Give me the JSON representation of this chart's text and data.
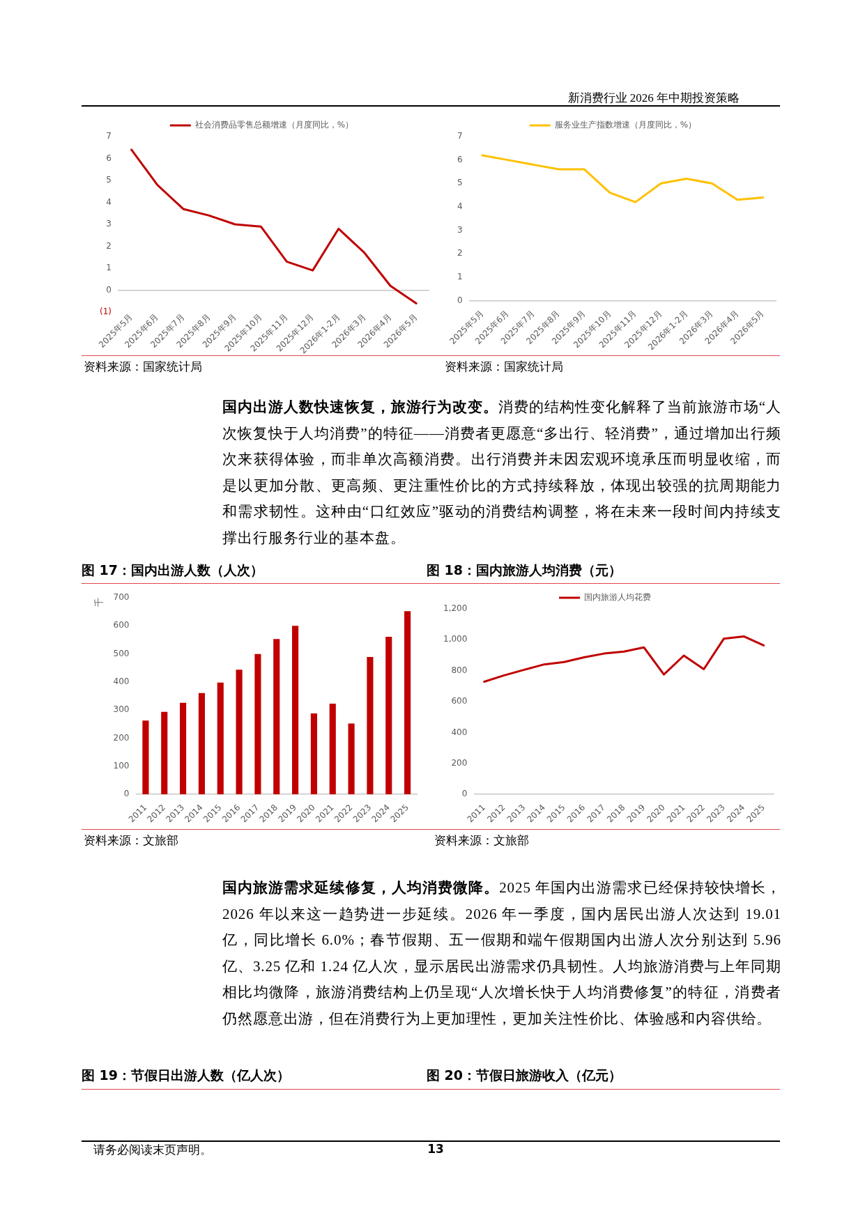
{
  "chart_data": [
    {
      "type": "other",
      "annotations": [
        "新消费行业 2026 年中期投资策略"
      ]
    },
    {
      "type": "line",
      "categories": [
        "2025年5月",
        "2025年6月",
        "2025年7月",
        "2025年8月",
        "2025年9月",
        "2025年10月",
        "2025年11月",
        "2025年12月",
        "2026年1-2月",
        "2026年3月",
        "2026年4月",
        "2026年5月"
      ],
      "series": [
        {
          "name": "社会消费品零售总额增速（月度同比，%）",
          "color": "#c00000",
          "values": [
            6.4,
            4.8,
            3.7,
            3.4,
            3.0,
            2.9,
            1.3,
            0.9,
            2.8,
            1.7,
            0.2,
            -0.6
          ]
        }
      ],
      "ylim": [
        -1,
        7
      ],
      "yticks": [
        {
          "value": -1,
          "label": "(1)"
        },
        0,
        1,
        2,
        3,
        4,
        5,
        6,
        7
      ],
      "legend": "top",
      "marker": "none",
      "annotations": [
        "资料来源：国家统计局"
      ]
    },
    {
      "type": "line",
      "categories": [
        "2025年5月",
        "2025年6月",
        "2025年7月",
        "2025年8月",
        "2025年9月",
        "2025年10月",
        "2025年11月",
        "2025年12月",
        "2026年1-2月",
        "2026年3月",
        "2026年4月",
        "2026年5月"
      ],
      "series": [
        {
          "name": "服务业生产指数增速（月度同比，%）",
          "color": "#ffc000",
          "values": [
            6.2,
            6.0,
            5.8,
            5.6,
            5.6,
            4.6,
            4.2,
            5.0,
            5.2,
            5.0,
            4.3,
            4.4
          ]
        }
      ],
      "ylim": [
        0,
        7
      ],
      "yticks": [
        0,
        1,
        2,
        3,
        4,
        5,
        6,
        7
      ],
      "legend": "top",
      "marker": "none",
      "annotations": [
        "资料来源：国家统计局"
      ]
    },
    {
      "type": "other",
      "title": "国内出游人数快速恢复，旅游行为改变。",
      "annotations": [
        "消费的结构性变化解释了当前旅游市场“人次恢复快于人均消费”的特征——消费者更愿意“多出行、轻消费”，通过增加出行频次来获得体验，而非单次高额消费。出行消费并未因宏观环境承压而明显收缩，而是以更加分散、更高频、更注重性价比的方式持续释放，体现出较强的抗周期能力和需求韧性。这种由“口红效应”驱动的消费结构调整，将在未来一段时间内持续支撑出行服务行业的基本盘。"
      ]
    },
    {
      "type": "bar",
      "title": "图 17：国内出游人数（人次）",
      "ylabel": "千",
      "categories": [
        "2011",
        "2012",
        "2013",
        "2014",
        "2015",
        "2016",
        "2017",
        "2018",
        "2019",
        "2020",
        "2021",
        "2022",
        "2023",
        "2024",
        "2025"
      ],
      "values": [
        263,
        294,
        326,
        361,
        398,
        444,
        500,
        553,
        600,
        288,
        323,
        252,
        489,
        561,
        652
      ],
      "color": "#c00000",
      "ylim": [
        0,
        700
      ],
      "yticks": [
        0,
        100,
        200,
        300,
        400,
        500,
        600,
        700
      ],
      "annotations": [
        "资料来源：文旅部"
      ]
    },
    {
      "type": "line",
      "title": "图 18：国内旅游人均消费（元）",
      "categories": [
        "2011",
        "2012",
        "2013",
        "2014",
        "2015",
        "2016",
        "2017",
        "2018",
        "2019",
        "2020",
        "2021",
        "2022",
        "2023",
        "2024",
        "2025"
      ],
      "series": [
        {
          "name": "国内旅游人均花费",
          "color": "#c00000",
          "values": [
            729,
            770,
            806,
            841,
            856,
            887,
            911,
            924,
            951,
            776,
            898,
            810,
            1007,
            1022,
            964
          ]
        }
      ],
      "ylim": [
        0,
        1200
      ],
      "yticks": [
        0,
        200,
        400,
        600,
        800,
        {
          "value": 1000,
          "label": "1,000"
        },
        {
          "value": 1200,
          "label": "1,200"
        }
      ],
      "legend": "top",
      "marker": "none",
      "annotations": [
        "资料来源：文旅部"
      ]
    },
    {
      "type": "other",
      "title": "国内旅游需求延续修复，人均消费微降。",
      "annotations": [
        "2025 年国内出游需求已经保持较快增长，2026 年以来这一趋势进一步延续。2026 年一季度，国内居民出游人次达到 19.01 亿，同比增长 6.0%；春节假期、五一假期和端午假期国内出游人次分别达到 5.96 亿、3.25 亿和 1.24 亿人次，显示居民出游需求仍具韧性。人均旅游消费与上年同期相比均微降，旅游消费结构上仍呈现“人次增长快于人均消费修复”的特征，消费者仍然愿意出游，但在消费行为上更加理性，更加关注性价比、体验感和内容供给。"
      ]
    },
    {
      "type": "other",
      "annotations": [
        "图 19：节假日出游人数（亿人次）",
        "图 20：节假日旅游收入（亿元）"
      ]
    },
    {
      "type": "other",
      "annotations": [
        "请务必阅读末页声明。",
        "13"
      ]
    }
  ]
}
